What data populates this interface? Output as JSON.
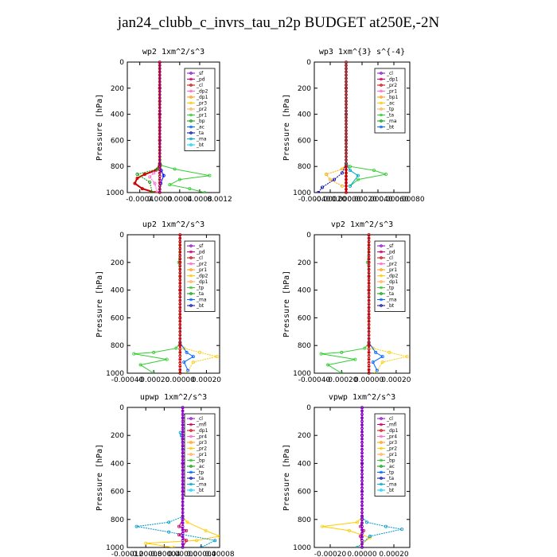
{
  "title": "jan24_clubb_c_invrs_tau_n2p  BUDGET at250E,-2N",
  "chart_data": [
    {
      "type": "line",
      "title": "wp2   1xm^2/s^3",
      "ylabel": "Pressure [hPa]",
      "xlim": [
        -0.00065,
        0.0012
      ],
      "ylim": [
        1000,
        0
      ],
      "xticks": [
        -0.0004,
        0.0,
        0.0004,
        0.0008,
        0.0012
      ],
      "xtick_labels": [
        "-0.0004",
        "0.0000",
        "0.0004",
        "0.0008",
        "0.0012"
      ],
      "yticks": [
        0,
        200,
        400,
        600,
        800,
        1000
      ],
      "legend": [
        "_sf",
        "_pd",
        "_cl",
        "_dp2",
        "_dp1",
        "_pr3",
        "_pr2",
        "_pr1",
        "_bp",
        "_ac",
        "_ta",
        "_ma",
        "_bt"
      ],
      "series": [
        {
          "name": "_cl",
          "color": "#cc0000",
          "x": [
            0,
            0,
            0,
            0,
            -1e-05,
            -8e-05,
            -0.0003,
            -0.00045,
            -0.0005,
            -0.00035,
            -0.0001
          ],
          "y": [
            0,
            200,
            500,
            780,
            800,
            830,
            860,
            890,
            930,
            970,
            1000
          ]
        },
        {
          "name": "_dp1",
          "color": "#ff66cc",
          "x": [
            0,
            0,
            0,
            0,
            -2e-05,
            -0.00012,
            -0.0002,
            -0.0001,
            -5e-05
          ],
          "y": [
            0,
            300,
            600,
            790,
            820,
            850,
            880,
            930,
            1000
          ]
        },
        {
          "name": "_pr1",
          "color": "#33cc33",
          "x": [
            0,
            0,
            0,
            2e-05,
            0.0003,
            0.001,
            0.0004,
            0.0002,
            0.0006,
            0.0009
          ],
          "y": [
            0,
            300,
            600,
            790,
            820,
            870,
            900,
            940,
            970,
            1000
          ]
        },
        {
          "name": "_bp",
          "color": "#009900",
          "x": [
            0,
            0,
            0,
            -5e-05,
            -0.00045,
            -0.0002,
            -0.00015
          ],
          "y": [
            0,
            400,
            780,
            820,
            860,
            920,
            1000
          ]
        },
        {
          "name": "_ta",
          "color": "#0000ff",
          "x": [
            0,
            0,
            0,
            3e-05,
            8e-05,
            2e-05,
            0
          ],
          "y": [
            0,
            400,
            780,
            830,
            870,
            930,
            1000
          ]
        },
        {
          "name": "_sf",
          "color": "#8800cc",
          "x": [
            0,
            0,
            0,
            0,
            0,
            0
          ],
          "y": [
            0,
            200,
            400,
            600,
            800,
            1000
          ]
        }
      ]
    },
    {
      "type": "line",
      "title": "wp3   1xm^{3} s^{-4}",
      "ylabel": "Pressure [hPa]",
      "xlim": [
        -0.0004,
        0.0008
      ],
      "ylim": [
        1000,
        0
      ],
      "xticks": [
        -0.0004,
        -0.0002,
        0.0,
        0.0002,
        0.0004,
        0.0006,
        0.0008
      ],
      "xtick_labels": [
        "-0.00040",
        "-0.00020",
        "0.00000",
        "0.00020",
        "0.00040",
        "0.00060",
        "0.00080"
      ],
      "yticks": [
        0,
        200,
        400,
        600,
        800,
        1000
      ],
      "legend": [
        "_cl",
        "_dp1",
        "_pr2",
        "_pr1",
        "_bp1",
        "_ac",
        "_tp",
        "_ta",
        "_ma",
        "_bt"
      ],
      "series": [
        {
          "name": "_cl",
          "color": "#cc0000",
          "x": [
            0,
            0,
            0,
            0,
            0,
            0
          ],
          "y": [
            0,
            200,
            400,
            600,
            800,
            1000
          ]
        },
        {
          "name": "_pr2",
          "color": "#ffaa00",
          "x": [
            0,
            0,
            0,
            -5e-05,
            -0.00025,
            -0.0002,
            -5e-05
          ],
          "y": [
            0,
            400,
            780,
            820,
            860,
            900,
            950
          ]
        },
        {
          "name": "_bp1",
          "color": "#33cc33",
          "x": [
            0,
            0,
            0,
            5e-05,
            0.00035,
            0.0005,
            0.00015,
            5e-05
          ],
          "y": [
            0,
            400,
            780,
            800,
            830,
            860,
            900,
            950
          ]
        },
        {
          "name": "_tp",
          "color": "#0000aa",
          "x": [
            0,
            0,
            0,
            -5e-05,
            -0.00015,
            -0.0003,
            -0.00035
          ],
          "y": [
            0,
            400,
            780,
            850,
            900,
            960,
            1000
          ]
        },
        {
          "name": "_ta",
          "color": "#00aacc",
          "x": [
            0,
            0,
            0,
            5e-05,
            0.00015,
            5e-05
          ],
          "y": [
            0,
            400,
            780,
            830,
            870,
            950
          ]
        }
      ]
    },
    {
      "type": "line",
      "title": "up2   1xm^2/s^3",
      "ylabel": "Pressure [hPa]",
      "xlim": [
        -0.0004,
        0.0003
      ],
      "ylim": [
        1000,
        0
      ],
      "xticks": [
        -0.0004,
        -0.0002,
        0.0,
        0.0002
      ],
      "xtick_labels": [
        "-0.00040",
        "-0.00020",
        "0.00000",
        "0.00020"
      ],
      "yticks": [
        0,
        200,
        400,
        600,
        800,
        1000
      ],
      "legend": [
        "_sf",
        "_pd",
        "_cl",
        "_pr2",
        "_pr1",
        "_dp2",
        "_dp1",
        "_tp",
        "_ta",
        "_ma",
        "_bt"
      ],
      "series": [
        {
          "name": "_pr1",
          "color": "#33cc33",
          "x": [
            0,
            -1e-05,
            0,
            0,
            -3e-05,
            -0.0002,
            -0.00035,
            -0.0001,
            -0.0003,
            -0.0002
          ],
          "y": [
            0,
            200,
            300,
            780,
            820,
            850,
            860,
            900,
            940,
            1000
          ]
        },
        {
          "name": "_pr2",
          "color": "#ffcc00",
          "x": [
            0,
            0,
            0,
            3e-05,
            0.00015,
            0.00028,
            0.0001,
            5e-05
          ],
          "y": [
            0,
            400,
            780,
            820,
            850,
            880,
            920,
            1000
          ]
        },
        {
          "name": "_tp",
          "color": "#0066ff",
          "x": [
            0,
            0,
            0,
            5e-05,
            0.0001,
            3e-05,
            6e-05
          ],
          "y": [
            0,
            400,
            780,
            850,
            880,
            920,
            980
          ]
        },
        {
          "name": "_cl",
          "color": "#cc0000",
          "x": [
            0,
            0,
            0,
            0,
            0,
            0
          ],
          "y": [
            0,
            200,
            400,
            600,
            800,
            1000
          ]
        }
      ]
    },
    {
      "type": "line",
      "title": "vp2   1xm^2/s^3",
      "ylabel": "Pressure [hPa]",
      "xlim": [
        -0.0004,
        0.0003
      ],
      "ylim": [
        1000,
        0
      ],
      "xticks": [
        -0.0004,
        -0.0002,
        0.0,
        0.0002
      ],
      "xtick_labels": [
        "-0.00040",
        "-0.00020",
        "0.00000",
        "0.00020"
      ],
      "yticks": [
        0,
        200,
        400,
        600,
        800,
        1000
      ],
      "legend": [
        "_sf",
        "_pd",
        "_cl",
        "_pr2",
        "_pr1",
        "_dp2",
        "_dp1",
        "_tp",
        "_ta",
        "_ma",
        "_bt"
      ],
      "series": [
        {
          "name": "_pr1",
          "color": "#33cc33",
          "x": [
            0,
            -1e-05,
            0,
            0,
            -3e-05,
            -0.0002,
            -0.00035,
            -0.0001,
            -0.0003,
            -0.0002
          ],
          "y": [
            0,
            200,
            300,
            780,
            820,
            850,
            860,
            900,
            940,
            1000
          ]
        },
        {
          "name": "_pr2",
          "color": "#ffcc00",
          "x": [
            0,
            0,
            0,
            3e-05,
            0.00015,
            0.00028,
            0.0001,
            5e-05
          ],
          "y": [
            0,
            400,
            780,
            820,
            850,
            880,
            920,
            1000
          ]
        },
        {
          "name": "_tp",
          "color": "#0066ff",
          "x": [
            0,
            0,
            0,
            5e-05,
            0.0001,
            3e-05,
            6e-05
          ],
          "y": [
            0,
            400,
            780,
            850,
            880,
            920,
            980
          ]
        },
        {
          "name": "_cl",
          "color": "#cc0000",
          "x": [
            0,
            0,
            0,
            0,
            0,
            0
          ],
          "y": [
            0,
            200,
            400,
            600,
            800,
            1000
          ]
        }
      ]
    },
    {
      "type": "line",
      "title": "upwp   1xm^2/s^3",
      "ylabel": "Pressure [hPa]",
      "xlim": [
        -0.00012,
        8e-05
      ],
      "ylim": [
        1000,
        0
      ],
      "xticks": [
        -0.00012,
        -8e-05,
        -4e-05,
        0.0,
        4e-05,
        8e-05
      ],
      "xtick_labels": [
        "-0.00012",
        "-0.00008",
        "-0.00004",
        "0.00000",
        "0.00004",
        "0.00008"
      ],
      "yticks": [
        0,
        200,
        400,
        600,
        800,
        1000
      ],
      "legend": [
        "_cl",
        "_mfl",
        "_dp1",
        "_pr4",
        "_pr3",
        "_pr2",
        "_pr1",
        "_bp",
        "_ac",
        "_tp",
        "_ta",
        "_ma",
        "_bt"
      ],
      "series": [
        {
          "name": "_pr2",
          "color": "#ffcc00",
          "x": [
            0,
            0,
            0,
            1e-05,
            5e-05,
            8e-05,
            3e-05,
            -8e-05,
            -2e-05
          ],
          "y": [
            0,
            400,
            780,
            820,
            880,
            920,
            950,
            970,
            1000
          ]
        },
        {
          "name": "_ta",
          "color": "#0099cc",
          "x": [
            -5e-06,
            -3e-06,
            0,
            0,
            -3e-05,
            -0.0001,
            -3e-05,
            7e-05,
            4e-05
          ],
          "y": [
            180,
            200,
            400,
            780,
            820,
            850,
            890,
            950,
            1000
          ]
        },
        {
          "name": "_dp1",
          "color": "#cc0066",
          "x": [
            0,
            0,
            0,
            -8e-06,
            8e-06,
            -8e-06,
            8e-06,
            0
          ],
          "y": [
            0,
            400,
            800,
            850,
            880,
            910,
            950,
            1000
          ]
        },
        {
          "name": "_cl",
          "color": "#8800cc",
          "x": [
            0,
            0,
            0,
            0,
            0,
            0
          ],
          "y": [
            0,
            200,
            400,
            600,
            800,
            1000
          ]
        }
      ]
    },
    {
      "type": "line",
      "title": "vpwp   1xm^2/s^3",
      "ylabel": "Pressure [hPa]",
      "xlim": [
        -0.0003,
        0.0003
      ],
      "ylim": [
        1000,
        0
      ],
      "xticks": [
        -0.0002,
        0.0,
        0.0002
      ],
      "xtick_labels": [
        "-0.00020",
        "0.00000",
        "0.00020"
      ],
      "yticks": [
        0,
        200,
        400,
        600,
        800,
        1000
      ],
      "legend": [
        "_cl",
        "_mfl",
        "_dp1",
        "_pr4",
        "_pr3",
        "_pr2",
        "_pr1",
        "_bp",
        "_ac",
        "_tp",
        "_ta",
        "_ma",
        "_bt"
      ],
      "series": [
        {
          "name": "_pr2",
          "color": "#ffcc00",
          "x": [
            0,
            0,
            0,
            -3e-05,
            -0.00025,
            -8e-05,
            5e-05,
            -3e-05
          ],
          "y": [
            0,
            400,
            780,
            820,
            850,
            880,
            930,
            1000
          ]
        },
        {
          "name": "_ta",
          "color": "#0099cc",
          "x": [
            0,
            0,
            0,
            3e-05,
            0.00015,
            0.00025,
            5e-05,
            -3e-05
          ],
          "y": [
            0,
            400,
            780,
            820,
            850,
            870,
            920,
            1000
          ]
        },
        {
          "name": "_dp1",
          "color": "#cc0066",
          "x": [
            0,
            0,
            0,
            -1e-05,
            1e-05,
            -1e-05,
            0
          ],
          "y": [
            0,
            400,
            800,
            850,
            880,
            920,
            1000
          ]
        },
        {
          "name": "_cl",
          "color": "#8800cc",
          "x": [
            0,
            0,
            0,
            0,
            0,
            0
          ],
          "y": [
            0,
            200,
            400,
            600,
            800,
            1000
          ]
        }
      ]
    }
  ]
}
